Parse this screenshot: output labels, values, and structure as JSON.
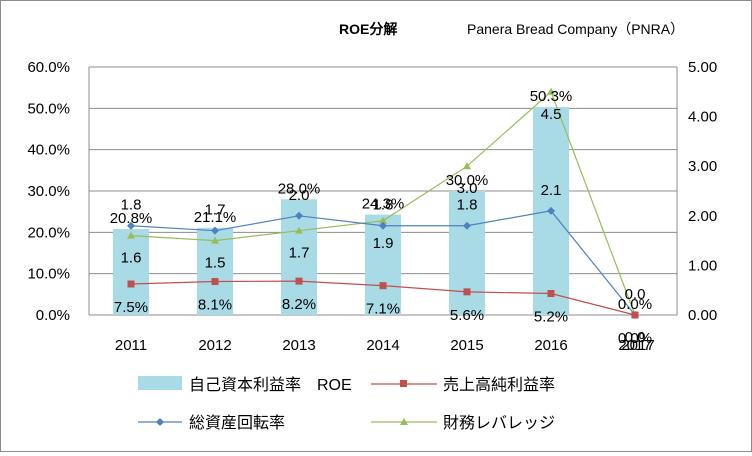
{
  "title": "ROE分解",
  "company": "Panera Bread Company（PNRA）",
  "legend": {
    "roe": "自己資本利益率　ROE",
    "margin": "売上高純利益率",
    "turnover": "総資産回転率",
    "leverage": "財務レバレッジ"
  },
  "colors": {
    "roe": "#a8dbe6",
    "margin": "#c0504d",
    "turnover": "#4f81bd",
    "leverage": "#9bbb59"
  },
  "chart_data": {
    "type": "bar",
    "categories": [
      "2011",
      "2012",
      "2013",
      "2014",
      "2015",
      "2016",
      "2017"
    ],
    "category_labels_printed": [
      "2011",
      "2012",
      "2013",
      "2014",
      "2015",
      "2016",
      "2017",
      "2017"
    ],
    "left_axis": {
      "min": 0,
      "max": 60,
      "tick_labels": [
        "0.0%",
        "10.0%",
        "20.0%",
        "30.0%",
        "40.0%",
        "50.0%",
        "60.0%"
      ]
    },
    "right_axis": {
      "min": 0,
      "max": 5,
      "tick_labels": [
        "0.00",
        "1.00",
        "2.00",
        "3.00",
        "4.00",
        "5.00"
      ]
    },
    "series": [
      {
        "name": "自己資本利益率　ROE",
        "kind": "bar",
        "axis": "left",
        "values": [
          20.8,
          21.1,
          28.0,
          24.3,
          30.0,
          50.3,
          0.0
        ],
        "labels": [
          "20.8%",
          "21.1%",
          "28.0%",
          "24.3%",
          "30.0%",
          "50.3%",
          "0.0%"
        ]
      },
      {
        "name": "売上高純利益率",
        "kind": "line",
        "axis": "left",
        "values": [
          7.5,
          8.1,
          8.2,
          7.1,
          5.6,
          5.2,
          0.0
        ],
        "labels": [
          "7.5%",
          "8.1%",
          "8.2%",
          "7.1%",
          "5.6%",
          "5.2%",
          "0.0%"
        ]
      },
      {
        "name": "総資産回転率",
        "kind": "line",
        "axis": "right",
        "values": [
          1.8,
          1.7,
          2.0,
          1.8,
          1.8,
          2.1,
          0.0
        ],
        "labels": [
          "1.8",
          "1.7",
          "2.0",
          "1.8",
          "1.8",
          "2.1",
          "0.0"
        ]
      },
      {
        "name": "財務レバレッジ",
        "kind": "line",
        "axis": "right",
        "values": [
          1.6,
          1.5,
          1.7,
          1.9,
          3.0,
          4.5,
          0.0
        ],
        "labels": [
          "1.6",
          "1.5",
          "1.7",
          "1.9",
          "3.0",
          "4.5",
          "0.0"
        ]
      }
    ],
    "grid": "horizontal",
    "legend_position": "bottom"
  }
}
